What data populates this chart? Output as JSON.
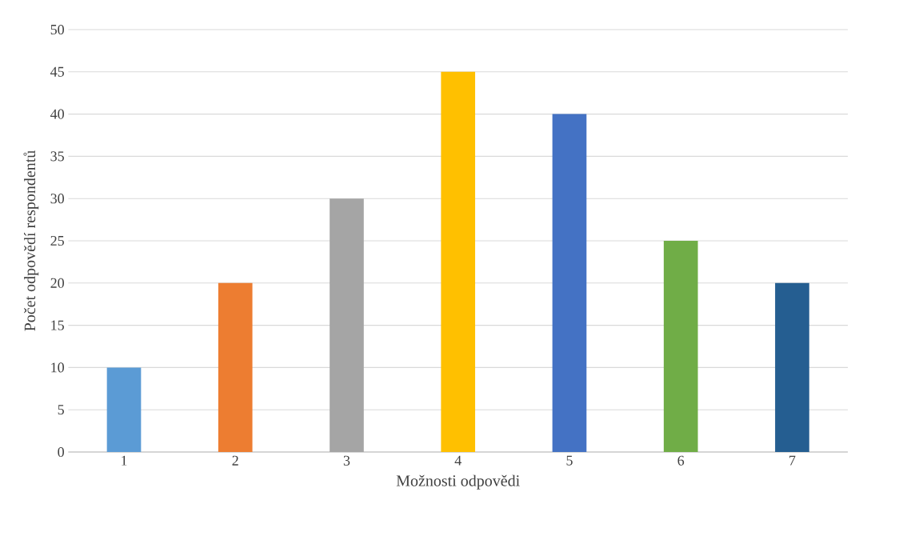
{
  "chart_data": {
    "type": "bar",
    "xlabel": "Možnosti odpovědi",
    "ylabel": "Počet odpovědí respondentů",
    "categories": [
      "1",
      "2",
      "3",
      "4",
      "5",
      "6",
      "7"
    ],
    "values": [
      10,
      20,
      30,
      45,
      40,
      25,
      20
    ],
    "colors": [
      "#5b9bd5",
      "#ed7d31",
      "#a5a5a5",
      "#ffc000",
      "#4472c4",
      "#70ad47",
      "#255e91"
    ],
    "ylim": [
      0,
      50
    ],
    "yticks": [
      0,
      5,
      10,
      15,
      20,
      25,
      30,
      35,
      40,
      45,
      50
    ],
    "grid": "y"
  }
}
